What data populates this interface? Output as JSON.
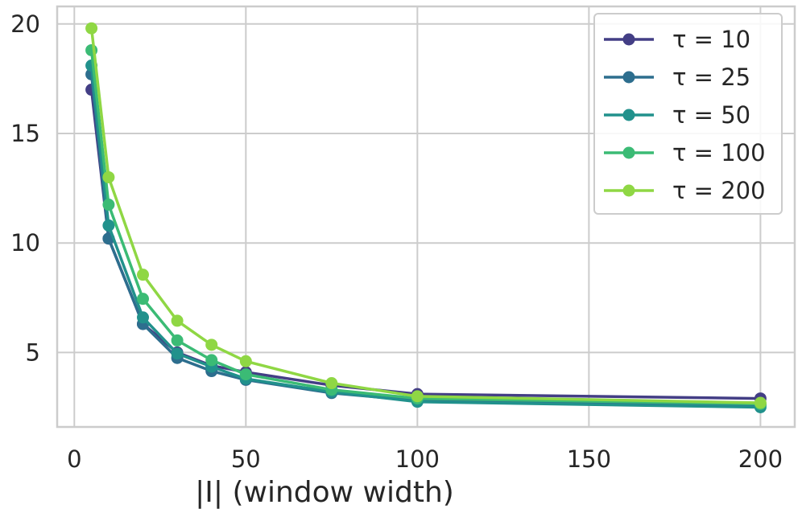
{
  "chart_data": {
    "type": "line",
    "xlabel": "|I| (window width)",
    "ylabel": "",
    "xlim": [
      -5,
      210
    ],
    "ylim": [
      1.6,
      20.8
    ],
    "xticks": [
      0,
      50,
      100,
      150,
      200
    ],
    "yticks": [
      5,
      10,
      15,
      20
    ],
    "grid": true,
    "legend_position": "top-right",
    "x": [
      5,
      10,
      20,
      30,
      40,
      50,
      75,
      100,
      200
    ],
    "series": [
      {
        "name": "τ = 10",
        "color": "#433e85",
        "values": [
          17.0,
          10.2,
          6.3,
          5.0,
          4.4,
          4.1,
          3.5,
          3.1,
          2.9
        ]
      },
      {
        "name": "τ = 25",
        "color": "#2d6e8e",
        "values": [
          17.7,
          10.2,
          6.3,
          4.75,
          4.15,
          3.75,
          3.15,
          2.8,
          2.6
        ]
      },
      {
        "name": "τ = 50",
        "color": "#21918c",
        "values": [
          18.1,
          10.8,
          6.6,
          4.95,
          4.35,
          3.8,
          3.2,
          2.75,
          2.5
        ]
      },
      {
        "name": "τ = 100",
        "color": "#3bbb75",
        "values": [
          18.8,
          11.75,
          7.45,
          5.55,
          4.65,
          4.0,
          3.3,
          2.9,
          2.65
        ]
      },
      {
        "name": "τ = 200",
        "color": "#8fd744",
        "values": [
          19.8,
          13.0,
          8.55,
          6.45,
          5.35,
          4.6,
          3.6,
          3.0,
          2.7
        ]
      }
    ]
  }
}
